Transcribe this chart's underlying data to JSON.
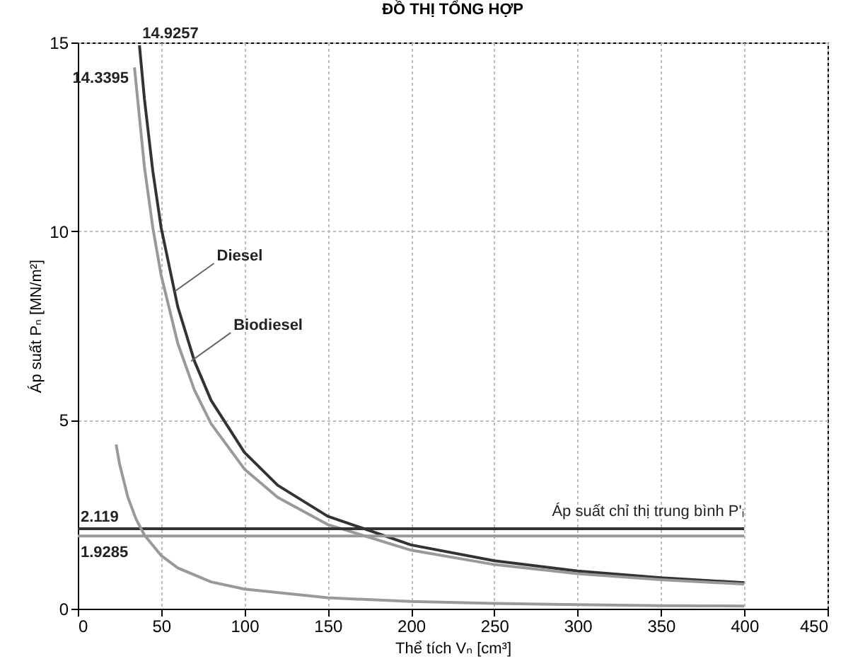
{
  "chart_data": {
    "type": "line",
    "title": "ĐỒ THỊ TỔNG HỢP",
    "xlabel": "Thể tích Vₙ [cm³]",
    "ylabel": "Áp suất Pₙ [MN/m²]",
    "xlim": [
      0,
      450
    ],
    "xticks": [
      0,
      50,
      100,
      150,
      200,
      250,
      300,
      350,
      400,
      450
    ],
    "ylim": [
      0,
      15
    ],
    "yticks": [
      0,
      5,
      10,
      15
    ],
    "grid": true,
    "marker": "none",
    "line_style": "solid",
    "annotations": [
      {
        "text": "Diesel",
        "x": 58,
        "y": 8.4
      },
      {
        "text": "Biodiesel",
        "x": 68,
        "y": 6.56
      },
      {
        "text": "Áp suất chỉ thị trung bình P'ᵢ",
        "x": 400,
        "y": 2.119
      }
    ],
    "series": [
      {
        "color": "#333333",
        "x": [
          37,
          40,
          45,
          50,
          60,
          70,
          80,
          100,
          120,
          150,
          200,
          250,
          300,
          350,
          400
        ],
        "values": [
          14.9257,
          13.5,
          11.6,
          10.1,
          8.0,
          6.56,
          5.52,
          4.14,
          3.27,
          2.45,
          1.69,
          1.27,
          1.0,
          0.82,
          0.69
        ],
        "value_labels": [
          "14.9257",
          null,
          null,
          null,
          null,
          null,
          null,
          null,
          null,
          null,
          null,
          null,
          null,
          null,
          null
        ]
      },
      {
        "color": "#999999",
        "x": [
          34,
          40,
          45,
          50,
          60,
          70,
          80,
          100,
          120,
          150,
          200,
          250,
          300,
          350,
          400
        ],
        "values": [
          14.3395,
          11.7,
          10.1,
          8.84,
          7.03,
          5.79,
          4.9,
          3.7,
          2.95,
          2.23,
          1.55,
          1.17,
          0.93,
          0.77,
          0.65
        ],
        "value_labels": [
          "14.3395",
          null,
          null,
          null,
          null,
          null,
          null,
          null,
          null,
          null,
          null,
          null,
          null,
          null,
          null
        ]
      },
      {
        "color": "#333333",
        "x": [
          0,
          400
        ],
        "values": [
          2.119,
          2.119
        ],
        "value_labels": [
          "2.119",
          null
        ]
      },
      {
        "color": "#999999",
        "x": [
          0,
          400
        ],
        "values": [
          1.9285,
          1.9285
        ],
        "value_labels": [
          "1.9285",
          null
        ]
      },
      {
        "color": "#999999",
        "x": [
          23,
          25,
          30,
          35,
          40,
          50,
          60,
          80,
          100,
          150,
          200,
          250,
          300,
          350,
          400
        ],
        "values": [
          4.35,
          3.85,
          2.96,
          2.37,
          1.95,
          1.41,
          1.08,
          0.71,
          0.52,
          0.29,
          0.19,
          0.14,
          0.11,
          0.08,
          0.07
        ]
      }
    ]
  }
}
